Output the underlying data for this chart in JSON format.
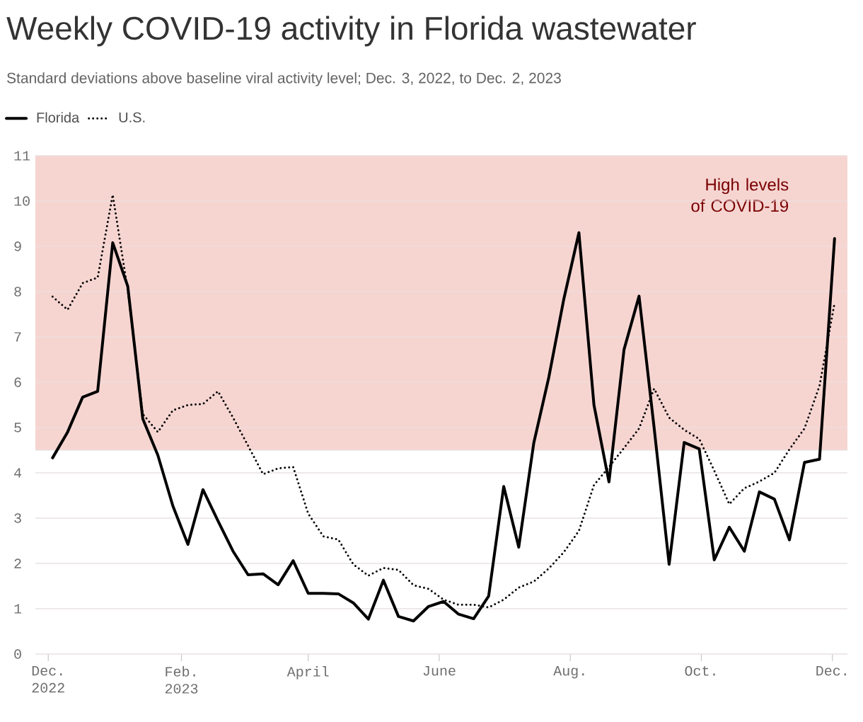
{
  "chart_data": {
    "type": "line",
    "title": "Weekly COVID-19 activity in Florida wastewater",
    "subtitle": "Standard deviations above baseline viral activity level; Dec. 3, 2022, to Dec. 2, 2023",
    "x": [
      "2022-12-03",
      "2022-12-10",
      "2022-12-17",
      "2022-12-24",
      "2022-12-31",
      "2023-01-07",
      "2023-01-14",
      "2023-01-21",
      "2023-01-28",
      "2023-02-04",
      "2023-02-11",
      "2023-02-18",
      "2023-02-25",
      "2023-03-04",
      "2023-03-11",
      "2023-03-18",
      "2023-03-25",
      "2023-04-01",
      "2023-04-08",
      "2023-04-15",
      "2023-04-22",
      "2023-04-29",
      "2023-05-06",
      "2023-05-13",
      "2023-05-20",
      "2023-05-27",
      "2023-06-03",
      "2023-06-10",
      "2023-06-17",
      "2023-06-24",
      "2023-07-01",
      "2023-07-08",
      "2023-07-15",
      "2023-07-22",
      "2023-07-29",
      "2023-08-05",
      "2023-08-12",
      "2023-08-19",
      "2023-08-26",
      "2023-09-02",
      "2023-09-09",
      "2023-09-16",
      "2023-09-23",
      "2023-09-30",
      "2023-10-07",
      "2023-10-14",
      "2023-10-21",
      "2023-10-28",
      "2023-11-04",
      "2023-11-11",
      "2023-11-18",
      "2023-11-25",
      "2023-12-02"
    ],
    "series": [
      {
        "name": "Florida",
        "color": "#000000",
        "line_style": "solid",
        "values": [
          4.33,
          4.9,
          5.67,
          5.8,
          9.08,
          8.12,
          5.19,
          4.39,
          3.27,
          2.42,
          3.63,
          2.94,
          2.27,
          1.75,
          1.77,
          1.53,
          2.06,
          1.34,
          1.34,
          1.33,
          1.13,
          0.77,
          1.63,
          0.83,
          0.73,
          1.05,
          1.16,
          0.88,
          0.78,
          1.28,
          3.7,
          2.36,
          4.66,
          6.11,
          7.84,
          9.3,
          5.5,
          3.8,
          6.72,
          7.9,
          5.0,
          1.98,
          4.67,
          4.53,
          2.08,
          2.8,
          2.27,
          3.58,
          3.42,
          2.52,
          4.23,
          4.3,
          9.17
        ]
      },
      {
        "name": "U.S.",
        "color": "#000000",
        "line_style": "dotted",
        "values": [
          7.89,
          7.6,
          8.19,
          8.31,
          10.14,
          8.03,
          5.3,
          4.9,
          5.38,
          5.5,
          5.52,
          5.8,
          5.22,
          4.6,
          3.97,
          4.1,
          4.13,
          3.1,
          2.6,
          2.53,
          1.98,
          1.73,
          1.9,
          1.86,
          1.52,
          1.44,
          1.2,
          1.09,
          1.09,
          1.03,
          1.2,
          1.47,
          1.6,
          1.89,
          2.25,
          2.72,
          3.73,
          4.13,
          4.55,
          4.98,
          5.86,
          5.22,
          4.95,
          4.75,
          4.05,
          3.31,
          3.66,
          3.81,
          4.0,
          4.52,
          4.98,
          5.92,
          7.75
        ]
      }
    ],
    "xlim": [
      "2022-11-25",
      "2023-12-08"
    ],
    "xticks": [
      {
        "value": "2022-12-01",
        "label": "Dec. 2022"
      },
      {
        "value": "2023-02-01",
        "label": "Feb. 2023"
      },
      {
        "value": "2023-04-01",
        "label": "April"
      },
      {
        "value": "2023-06-01",
        "label": "June"
      },
      {
        "value": "2023-08-01",
        "label": "Aug."
      },
      {
        "value": "2023-10-01",
        "label": "Oct."
      },
      {
        "value": "2023-12-01",
        "label": "Dec."
      }
    ],
    "ylim": [
      0,
      11
    ],
    "yticks": [
      0,
      1,
      2,
      3,
      4,
      5,
      6,
      7,
      8,
      9,
      10,
      11
    ],
    "grid": "y",
    "legend": "top left",
    "bands": [
      {
        "axis": "y",
        "from": 4.5,
        "to": 11,
        "label": "High levels of COVID-19",
        "color": "#f6d5d1"
      }
    ]
  }
}
